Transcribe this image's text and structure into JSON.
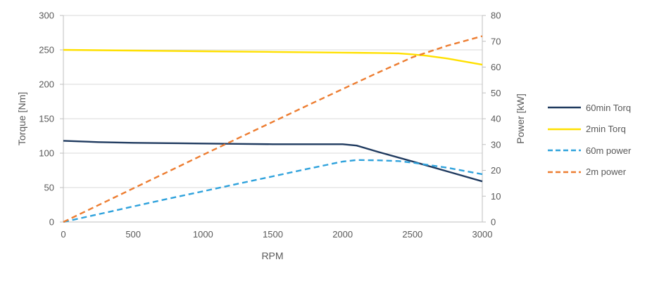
{
  "style": {
    "background": "#FFFFFF",
    "text_color": "#595959",
    "grid_color": "#D9D9D9",
    "axis_color": "#BFBFBF"
  },
  "chart_data": {
    "type": "line",
    "title": "",
    "xlabel": "RPM",
    "ylabel_left": "Torque [Nm]",
    "ylabel_right": "Power [kW]",
    "grid": "horizontal-only",
    "legend_position": "right",
    "x_axis": {
      "min": 0,
      "max": 3000,
      "ticks": [
        0,
        500,
        1000,
        1500,
        2000,
        2500,
        3000
      ]
    },
    "y_axis_left": {
      "min": 0,
      "max": 300,
      "ticks": [
        0,
        50,
        100,
        150,
        200,
        250,
        300
      ]
    },
    "y_axis_right": {
      "min": 0,
      "max": 80,
      "ticks": [
        0,
        10,
        20,
        30,
        40,
        50,
        60,
        70,
        80
      ]
    },
    "series": [
      {
        "name": "60min Torq",
        "axis": "left",
        "line_style": "solid",
        "color": "#1F3A5F",
        "points": [
          [
            0,
            118
          ],
          [
            250,
            116
          ],
          [
            500,
            115
          ],
          [
            750,
            114.5
          ],
          [
            1000,
            114
          ],
          [
            1250,
            113.5
          ],
          [
            1500,
            113
          ],
          [
            1750,
            113
          ],
          [
            2000,
            113
          ],
          [
            2100,
            111
          ],
          [
            2250,
            102
          ],
          [
            2500,
            88
          ],
          [
            2750,
            73.5
          ],
          [
            3000,
            59
          ]
        ]
      },
      {
        "name": "2min Torq",
        "axis": "left",
        "line_style": "solid",
        "color": "#FFE000",
        "points": [
          [
            0,
            250
          ],
          [
            500,
            249
          ],
          [
            1000,
            248
          ],
          [
            1500,
            247
          ],
          [
            2000,
            246
          ],
          [
            2250,
            245.5
          ],
          [
            2400,
            245
          ],
          [
            2500,
            243.5
          ],
          [
            2600,
            241.5
          ],
          [
            2750,
            237.5
          ],
          [
            3000,
            228.5
          ]
        ]
      },
      {
        "name": "60m power",
        "axis": "right",
        "line_style": "dashed",
        "color": "#2FA2DC",
        "points": [
          [
            0,
            0
          ],
          [
            250,
            3
          ],
          [
            500,
            6
          ],
          [
            750,
            9
          ],
          [
            1000,
            11.9
          ],
          [
            1250,
            14.8
          ],
          [
            1500,
            17.7
          ],
          [
            1750,
            20.6
          ],
          [
            2000,
            23.4
          ],
          [
            2100,
            24
          ],
          [
            2250,
            23.9
          ],
          [
            2400,
            23.6
          ],
          [
            2500,
            23
          ],
          [
            2750,
            21
          ],
          [
            3000,
            18.5
          ]
        ]
      },
      {
        "name": "2m power",
        "axis": "right",
        "line_style": "dashed",
        "color": "#ED7D31",
        "points": [
          [
            0,
            0
          ],
          [
            250,
            6.5
          ],
          [
            500,
            13
          ],
          [
            750,
            19.5
          ],
          [
            1000,
            26
          ],
          [
            1250,
            32.4
          ],
          [
            1500,
            38.8
          ],
          [
            1750,
            45.2
          ],
          [
            2000,
            51.5
          ],
          [
            2250,
            57.8
          ],
          [
            2500,
            63.8
          ],
          [
            2750,
            68.3
          ],
          [
            3000,
            72
          ]
        ]
      }
    ]
  }
}
